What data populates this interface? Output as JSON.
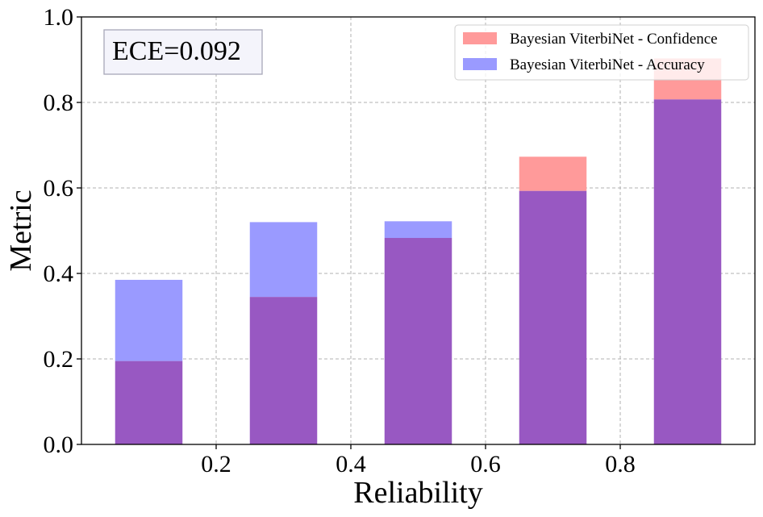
{
  "chart_data": {
    "type": "bar",
    "xlabel": "Reliability",
    "ylabel": "Metric",
    "xlim": [
      0.0,
      1.0
    ],
    "ylim": [
      0.0,
      1.0
    ],
    "xticks": [
      "0.2",
      "0.4",
      "0.6",
      "0.8"
    ],
    "yticks": [
      "0.0",
      "0.2",
      "0.4",
      "0.6",
      "0.8",
      "1.0"
    ],
    "grid": true,
    "bin_centers": [
      0.1,
      0.3,
      0.5,
      0.7,
      0.9
    ],
    "bar_width": 0.1,
    "series": [
      {
        "name": "Bayesian ViterbiNet - Confidence",
        "color": "#ff9a9a",
        "values": [
          0.195,
          0.345,
          0.483,
          0.673,
          0.903
        ]
      },
      {
        "name": "Bayesian ViterbiNet - Accuracy",
        "color": "#9a9aff",
        "values": [
          0.385,
          0.52,
          0.522,
          0.593,
          0.807
        ]
      }
    ],
    "overlap_color": "#9858c2",
    "legend_position": "top-right",
    "annotation": "ECE=0.092"
  }
}
